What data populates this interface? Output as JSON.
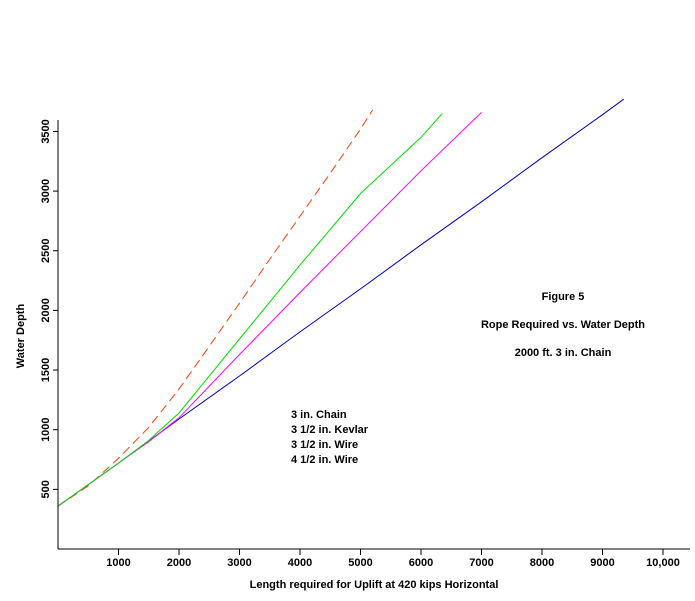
{
  "chart_data": {
    "type": "line",
    "annotations": [
      "Figure 5",
      "Rope Required vs. Water Depth",
      "2000 ft.  3 in. Chain"
    ],
    "xlabel": "Length required for Uplift at 420 kips Horizontal",
    "ylabel": "Water Depth",
    "xlim": [
      0,
      10500
    ],
    "ylim": [
      0,
      3660
    ],
    "x_ticks": [
      1000,
      2000,
      3000,
      4000,
      5000,
      6000,
      7000,
      8000,
      9000,
      10000
    ],
    "x_tick_labels": [
      "1000",
      "2000",
      "3000",
      "4000",
      "5000",
      "6000",
      "7000",
      "8000",
      "9000",
      "10,000"
    ],
    "y_ticks": [
      500,
      1000,
      1500,
      2000,
      2500,
      3000,
      3500
    ],
    "y_tick_labels": [
      "500",
      "1000",
      "1500",
      "2000",
      "2500",
      "3000",
      "3500"
    ],
    "grid": false,
    "legend_position": "center",
    "series": [
      {
        "name": "3 in. Chain",
        "color": "#ff4000",
        "dashed": true,
        "x": [
          0,
          500,
          1000,
          1500,
          2000,
          2500,
          3000,
          3500,
          4000,
          4500,
          5000,
          5200
        ],
        "y": [
          360,
          530,
          760,
          1020,
          1340,
          1700,
          2060,
          2430,
          2790,
          3150,
          3520,
          3680
        ]
      },
      {
        "name": "3 1/2 in. Kevlar",
        "color": "#0000c0",
        "dashed": false,
        "x": [
          0,
          1000,
          2000,
          3000,
          4000,
          5000,
          6000,
          7000,
          8000,
          9000,
          9350
        ],
        "y": [
          360,
          720,
          1090,
          1450,
          1820,
          2180,
          2550,
          2910,
          3280,
          3640,
          3770
        ]
      },
      {
        "name": "3 1/2 in. Wire",
        "color": "#ff00ff",
        "dashed": false,
        "x": [
          0,
          1000,
          1500,
          2000,
          3000,
          4000,
          5000,
          6000,
          7000
        ],
        "y": [
          360,
          720,
          900,
          1100,
          1630,
          2150,
          2660,
          3170,
          3660
        ]
      },
      {
        "name": "4 1/2 in. Wire",
        "color": "#00e000",
        "dashed": false,
        "x": [
          0,
          1000,
          1500,
          2000,
          3000,
          4000,
          5000,
          6000,
          6350
        ],
        "y": [
          360,
          720,
          910,
          1140,
          1760,
          2380,
          2980,
          3450,
          3650
        ]
      }
    ]
  }
}
